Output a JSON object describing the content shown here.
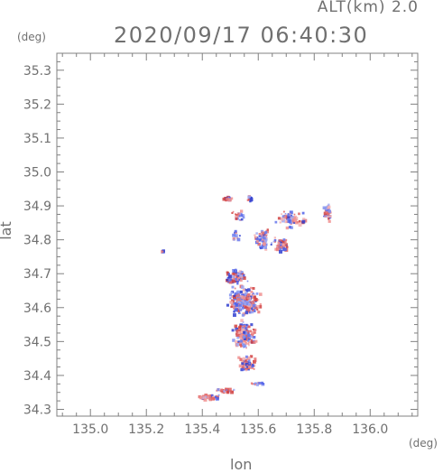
{
  "header": {
    "altitude_label": "ALT(km) 2.0",
    "timestamp": "2020/09/17 06:40:30"
  },
  "chart_data": {
    "type": "scatter",
    "title": "2020/09/17 06:40:30",
    "xlabel": "lon",
    "ylabel": "lat",
    "x_unit": "(deg)",
    "y_unit": "(deg)",
    "xlim": [
      134.88,
      136.17
    ],
    "ylim": [
      34.28,
      35.35
    ],
    "x_ticks": [
      "135.0",
      "135.2",
      "135.4",
      "135.6",
      "135.8",
      "136.0"
    ],
    "y_ticks": [
      "34.3",
      "34.4",
      "34.5",
      "34.6",
      "34.7",
      "34.8",
      "34.9",
      "35.0",
      "35.1",
      "35.2",
      "35.3"
    ],
    "grid": false,
    "colors": {
      "positive": "#e05050",
      "negative": "#4a5ae8",
      "axis": "#808080"
    },
    "clusters": [
      {
        "lon": 135.49,
        "lat": 34.92,
        "spread_lon": 0.02,
        "spread_lat": 0.01,
        "n": 25
      },
      {
        "lon": 135.57,
        "lat": 34.92,
        "spread_lon": 0.01,
        "spread_lat": 0.01,
        "n": 12
      },
      {
        "lon": 135.53,
        "lat": 34.87,
        "spread_lon": 0.03,
        "spread_lat": 0.02,
        "n": 25
      },
      {
        "lon": 135.72,
        "lat": 34.86,
        "spread_lon": 0.06,
        "spread_lat": 0.03,
        "n": 70
      },
      {
        "lon": 135.85,
        "lat": 34.88,
        "spread_lon": 0.02,
        "spread_lat": 0.03,
        "n": 40
      },
      {
        "lon": 135.62,
        "lat": 34.8,
        "spread_lon": 0.04,
        "spread_lat": 0.04,
        "n": 60
      },
      {
        "lon": 135.68,
        "lat": 34.78,
        "spread_lon": 0.04,
        "spread_lat": 0.03,
        "n": 45
      },
      {
        "lon": 135.52,
        "lat": 34.81,
        "spread_lon": 0.02,
        "spread_lat": 0.02,
        "n": 12
      },
      {
        "lon": 135.26,
        "lat": 34.765,
        "spread_lon": 0.01,
        "spread_lat": 0.005,
        "n": 5
      },
      {
        "lon": 135.52,
        "lat": 34.69,
        "spread_lon": 0.05,
        "spread_lat": 0.03,
        "n": 90
      },
      {
        "lon": 135.55,
        "lat": 34.62,
        "spread_lon": 0.07,
        "spread_lat": 0.05,
        "n": 260
      },
      {
        "lon": 135.55,
        "lat": 34.52,
        "spread_lon": 0.05,
        "spread_lat": 0.05,
        "n": 180
      },
      {
        "lon": 135.56,
        "lat": 34.43,
        "spread_lon": 0.04,
        "spread_lat": 0.03,
        "n": 80
      },
      {
        "lon": 135.43,
        "lat": 34.335,
        "spread_lon": 0.05,
        "spread_lat": 0.01,
        "n": 45
      },
      {
        "lon": 135.48,
        "lat": 34.355,
        "spread_lon": 0.04,
        "spread_lat": 0.008,
        "n": 25
      },
      {
        "lon": 135.6,
        "lat": 34.375,
        "spread_lon": 0.05,
        "spread_lat": 0.005,
        "n": 14
      }
    ]
  }
}
